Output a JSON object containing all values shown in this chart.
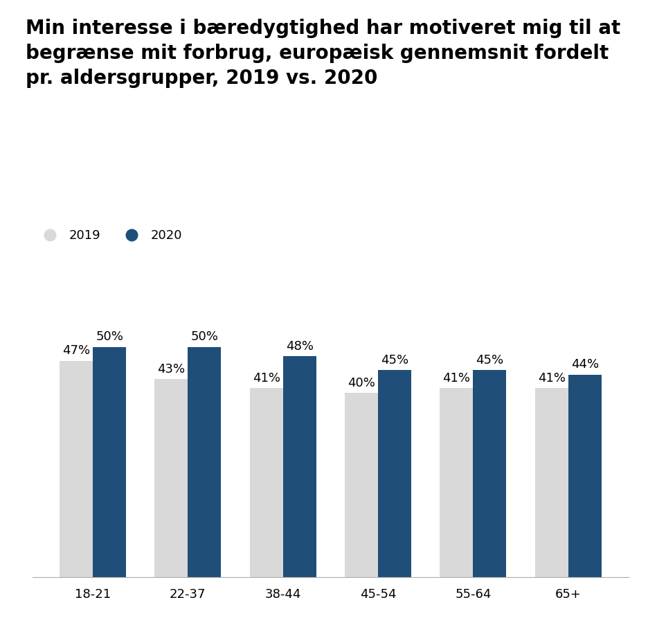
{
  "title": "Min interesse i bæredygtighed har motiveret mig til at\nbegrænse mit forbrug, europæisk gennemsnit fordelt\npr. aldersgrupper, 2019 vs. 2020",
  "categories": [
    "18-21",
    "22-37",
    "38-44",
    "45-54",
    "55-64",
    "65+"
  ],
  "values_2019": [
    47,
    43,
    41,
    40,
    41,
    41
  ],
  "values_2020": [
    50,
    50,
    48,
    45,
    45,
    44
  ],
  "color_2019": "#d9d9d9",
  "color_2020": "#1f4e79",
  "legend_2019": "2019",
  "legend_2020": "2020",
  "bar_width": 0.35,
  "ylim": [
    0,
    60
  ],
  "background_color": "#ffffff",
  "title_fontsize": 20,
  "tick_fontsize": 13,
  "legend_fontsize": 13,
  "annotation_fontsize": 13
}
